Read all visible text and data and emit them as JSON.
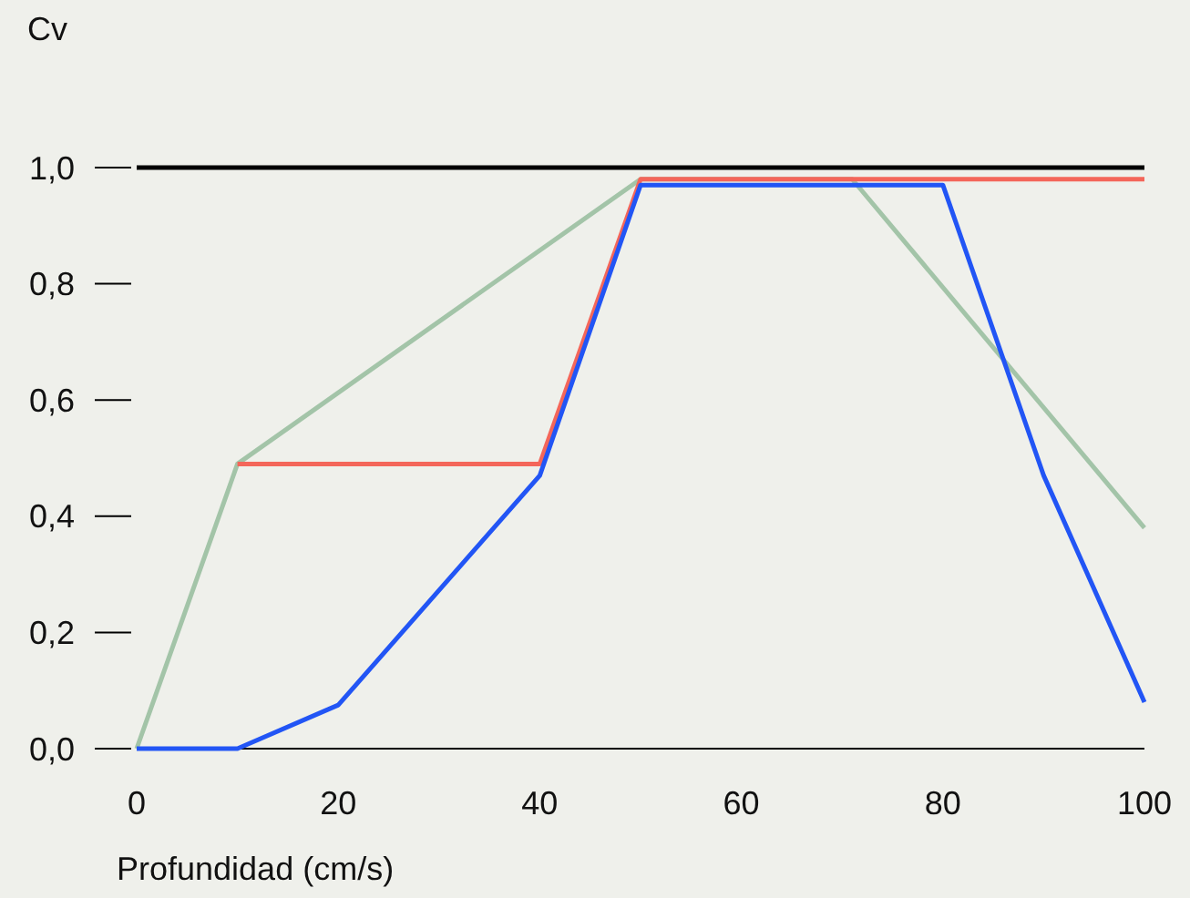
{
  "chart_data": {
    "type": "line",
    "xlabel": "Profundidad (cm/s)",
    "ylabel": "Cv",
    "xlim": [
      0,
      100
    ],
    "ylim": [
      0,
      1
    ],
    "xticks": [
      0,
      20,
      40,
      60,
      80,
      100
    ],
    "yticks": [
      {
        "value": 0,
        "label": "0,0"
      },
      {
        "value": 0.2,
        "label": "0,2"
      },
      {
        "value": 0.4,
        "label": "0,4"
      },
      {
        "value": 0.6,
        "label": "0,6"
      },
      {
        "value": 0.8,
        "label": "0,8"
      },
      {
        "value": 1,
        "label": "1,0"
      }
    ],
    "grid": false,
    "marker": "none",
    "line_style": "solid",
    "series": [
      {
        "color": "#000000",
        "x": [
          0,
          100
        ],
        "values": [
          1,
          1
        ]
      },
      {
        "color": "#a3c4a8",
        "x": [
          0,
          10,
          50,
          71,
          100
        ],
        "values": [
          0,
          0.49,
          0.98,
          0.98,
          0.38
        ]
      },
      {
        "color": "#f4665a",
        "x": [
          10,
          40,
          50,
          100
        ],
        "values": [
          0.49,
          0.49,
          0.98,
          0.98
        ]
      },
      {
        "color": "#2255f5",
        "x": [
          0,
          10,
          20,
          40,
          50,
          80,
          90,
          100
        ],
        "values": [
          0,
          0,
          0.075,
          0.47,
          0.97,
          0.97,
          0.47,
          0.08
        ]
      }
    ]
  }
}
